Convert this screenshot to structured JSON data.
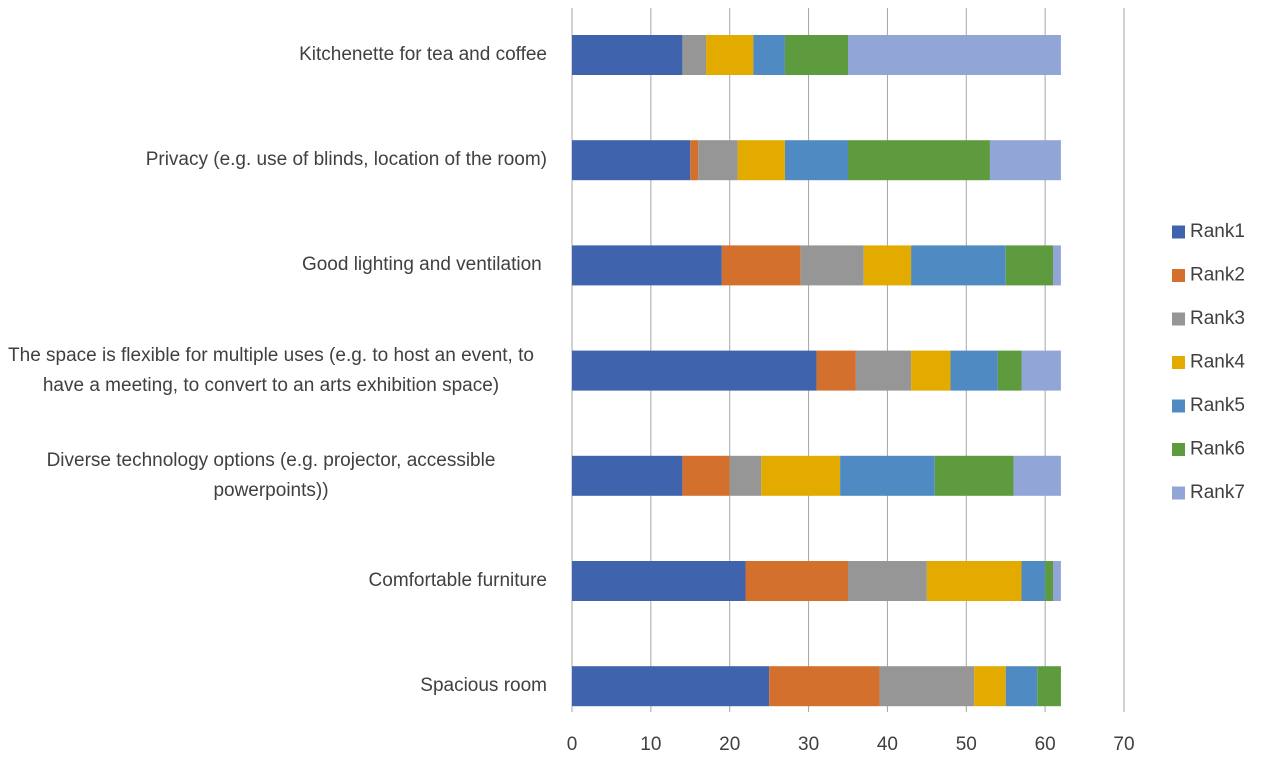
{
  "chart_data": {
    "type": "stacked-bar-horizontal",
    "categories": [
      "Kitchenette for tea and coffee",
      "Privacy (e.g. use of blinds, location of the room)",
      "Good lighting and ventilation ",
      "The space is flexible for multiple uses (e.g. to host an event, to have a meeting, to convert to an arts exhibition space)",
      "Diverse technology options (e.g. projector, accessible powerpoints))",
      "Comfortable furniture",
      "Spacious room"
    ],
    "series": [
      {
        "name": "Rank1",
        "color": "#3f63ad",
        "values": [
          14,
          15,
          19,
          31,
          14,
          22,
          25
        ]
      },
      {
        "name": "Rank2",
        "color": "#d4702e",
        "values": [
          0,
          1,
          10,
          5,
          6,
          13,
          14
        ]
      },
      {
        "name": "Rank3",
        "color": "#969696",
        "values": [
          3,
          5,
          8,
          7,
          4,
          10,
          12
        ]
      },
      {
        "name": "Rank4",
        "color": "#e3ab00",
        "values": [
          6,
          6,
          6,
          5,
          10,
          12,
          4
        ]
      },
      {
        "name": "Rank5",
        "color": "#4f8bc2",
        "values": [
          4,
          8,
          12,
          6,
          12,
          3,
          4
        ]
      },
      {
        "name": "Rank6",
        "color": "#5e9b3e",
        "values": [
          8,
          18,
          6,
          3,
          10,
          1,
          3
        ]
      },
      {
        "name": "Rank7",
        "color": "#91a5d6",
        "values": [
          27,
          9,
          1,
          5,
          6,
          1,
          0
        ]
      }
    ],
    "xlim": [
      0,
      70
    ],
    "xticks": [
      0,
      10,
      20,
      30,
      40,
      50,
      60,
      70
    ],
    "grid": true,
    "legend": "right"
  }
}
